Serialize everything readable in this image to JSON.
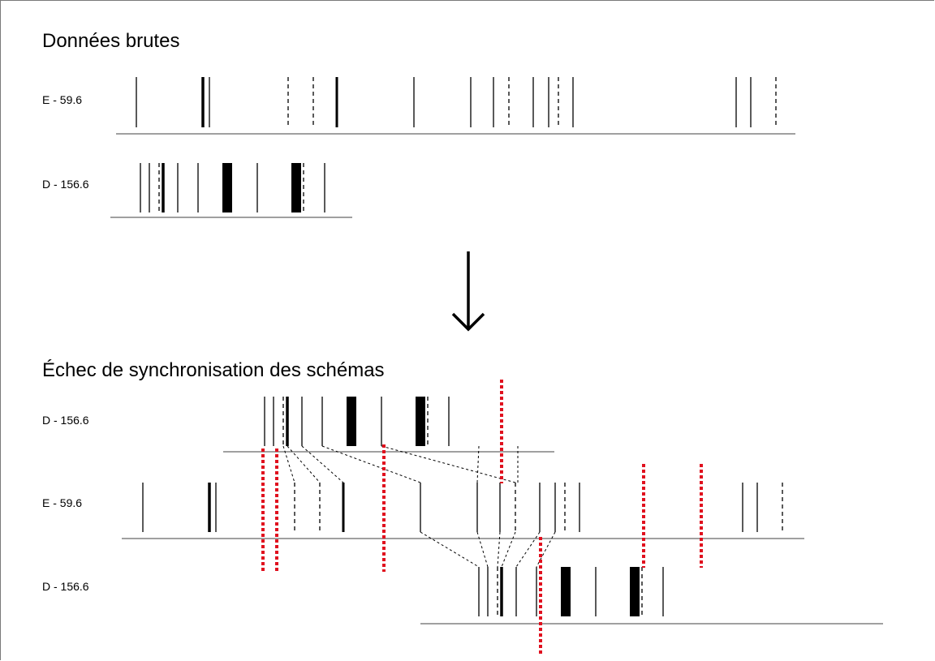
{
  "sections": {
    "raw": {
      "title": "Données brutes"
    },
    "failure": {
      "title": "Échec de synchronisation des schémas"
    }
  },
  "tracks": [
    {
      "id": "raw-e",
      "label": "E - 59.6",
      "marks": [
        {
          "t": "s"
        },
        {
          "t": "k"
        },
        {
          "t": "s"
        },
        {
          "t": "d"
        },
        {
          "t": "d"
        },
        {
          "t": "m"
        },
        {
          "t": "s"
        },
        {
          "t": "s"
        },
        {
          "t": "s"
        },
        {
          "t": "d"
        },
        {
          "t": "s"
        },
        {
          "t": "s"
        },
        {
          "t": "d"
        },
        {
          "t": "s"
        },
        {
          "t": "s"
        },
        {
          "t": "s"
        },
        {
          "t": "d"
        }
      ]
    },
    {
      "id": "raw-d",
      "label": "D - 156.6",
      "marks": [
        {
          "t": "s"
        },
        {
          "t": "s"
        },
        {
          "t": "d"
        },
        {
          "t": "k"
        },
        {
          "t": "s"
        },
        {
          "t": "s"
        },
        {
          "t": "b"
        },
        {
          "t": "s"
        },
        {
          "t": "b"
        },
        {
          "t": "d"
        },
        {
          "t": "s"
        }
      ]
    },
    {
      "id": "sync-d-top",
      "label": "D - 156.6",
      "marks": [
        {
          "t": "s"
        },
        {
          "t": "s"
        },
        {
          "t": "d"
        },
        {
          "t": "k"
        },
        {
          "t": "s"
        },
        {
          "t": "s"
        },
        {
          "t": "b"
        },
        {
          "t": "s"
        },
        {
          "t": "b"
        },
        {
          "t": "d"
        },
        {
          "t": "s"
        }
      ]
    },
    {
      "id": "sync-e",
      "label": "E - 59.6",
      "marks": [
        {
          "t": "s"
        },
        {
          "t": "k"
        },
        {
          "t": "s"
        },
        {
          "t": "d"
        },
        {
          "t": "d"
        },
        {
          "t": "m"
        },
        {
          "t": "s"
        },
        {
          "t": "s"
        },
        {
          "t": "s"
        },
        {
          "t": "d"
        },
        {
          "t": "s"
        },
        {
          "t": "s"
        },
        {
          "t": "d"
        },
        {
          "t": "s"
        },
        {
          "t": "s"
        },
        {
          "t": "s"
        },
        {
          "t": "d"
        }
      ]
    },
    {
      "id": "sync-d-bottom",
      "label": "D - 156.6",
      "marks": [
        {
          "t": "s"
        },
        {
          "t": "s"
        },
        {
          "t": "d"
        },
        {
          "t": "k"
        },
        {
          "t": "s"
        },
        {
          "t": "s"
        },
        {
          "t": "b"
        },
        {
          "t": "s"
        },
        {
          "t": "b"
        },
        {
          "t": "d"
        },
        {
          "t": "s"
        }
      ]
    }
  ],
  "colors": {
    "mark": "#000000",
    "baseline": "#808080",
    "mismatch": "#e0101e",
    "connector": "#000000"
  },
  "arrow": {
    "icon": "arrow-down-icon"
  }
}
